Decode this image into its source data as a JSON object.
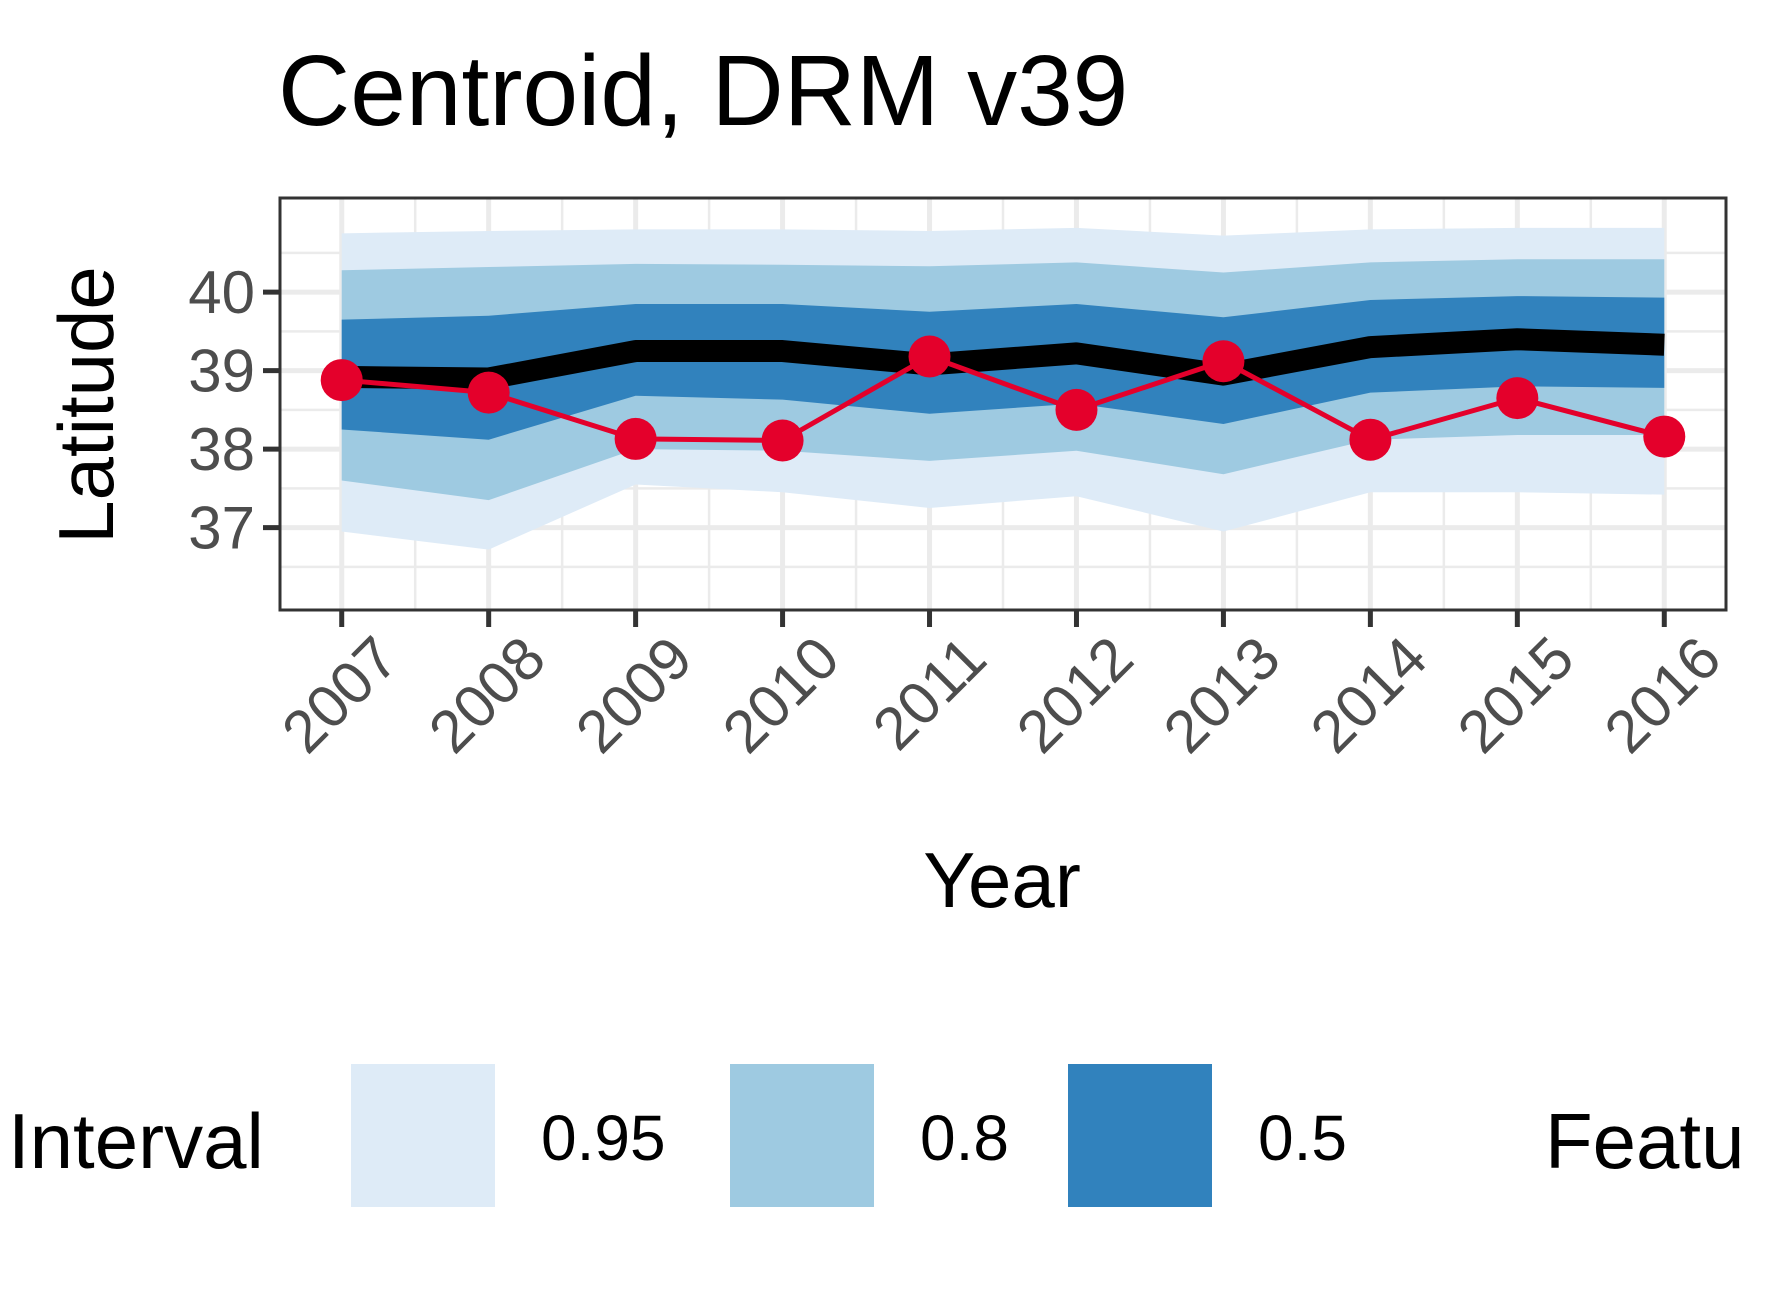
{
  "chart_data": {
    "type": "line",
    "title": "Centroid, DRM v39",
    "xlabel": "Year",
    "ylabel": "Latitude",
    "x": [
      2007,
      2008,
      2009,
      2010,
      2011,
      2012,
      2013,
      2014,
      2015,
      2016
    ],
    "x_tick_labels": [
      "2007",
      "2008",
      "2009",
      "2010",
      "2011",
      "2012",
      "2013",
      "2014",
      "2015",
      "2016"
    ],
    "y_ticks": [
      37,
      38,
      39,
      40
    ],
    "y_tick_labels": [
      "37",
      "38",
      "39",
      "40"
    ],
    "ylim": [
      35.95,
      41.2
    ],
    "grid": true,
    "legend_position": "bottom",
    "legend": {
      "interval_title": "Interval",
      "interval_entries": [
        {
          "label": "0.95",
          "color": "#deebf7"
        },
        {
          "label": "0.8",
          "color": "#9ecae1"
        },
        {
          "label": "0.5",
          "color": "#3182bd"
        }
      ],
      "feature_title_visible": "Featu"
    },
    "intervals": [
      {
        "level": "0.95",
        "color": "#deebf7",
        "lower": [
          36.95,
          36.72,
          37.55,
          37.45,
          37.25,
          37.4,
          36.95,
          37.45,
          37.45,
          37.42
        ],
        "upper": [
          40.75,
          40.78,
          40.8,
          40.8,
          40.78,
          40.82,
          40.72,
          40.8,
          40.82,
          40.82
        ]
      },
      {
        "level": "0.8",
        "color": "#9ecae1",
        "lower": [
          37.6,
          37.35,
          38.0,
          37.98,
          37.85,
          37.98,
          37.68,
          38.12,
          38.18,
          38.18
        ],
        "upper": [
          40.28,
          40.32,
          40.36,
          40.35,
          40.33,
          40.38,
          40.25,
          40.38,
          40.42,
          40.42
        ]
      },
      {
        "level": "0.5",
        "color": "#3182bd",
        "lower": [
          38.25,
          38.12,
          38.68,
          38.63,
          38.45,
          38.58,
          38.32,
          38.72,
          38.8,
          38.78
        ],
        "upper": [
          39.65,
          39.7,
          39.85,
          39.85,
          39.75,
          39.85,
          39.68,
          39.9,
          39.95,
          39.93
        ]
      }
    ],
    "series": [
      {
        "color": "#000000",
        "values": [
          38.92,
          38.9,
          39.25,
          39.25,
          39.08,
          39.22,
          38.95,
          39.3,
          39.4,
          39.33
        ]
      },
      {
        "color": "#e4002b",
        "values": [
          38.88,
          38.72,
          38.13,
          38.11,
          39.18,
          38.5,
          39.12,
          38.12,
          38.65,
          38.16
        ]
      }
    ],
    "colors": {
      "panel_border": "#333333",
      "grid": "#ebebeb",
      "tick_text": "#4d4d4d",
      "tick_mark": "#333333"
    }
  }
}
